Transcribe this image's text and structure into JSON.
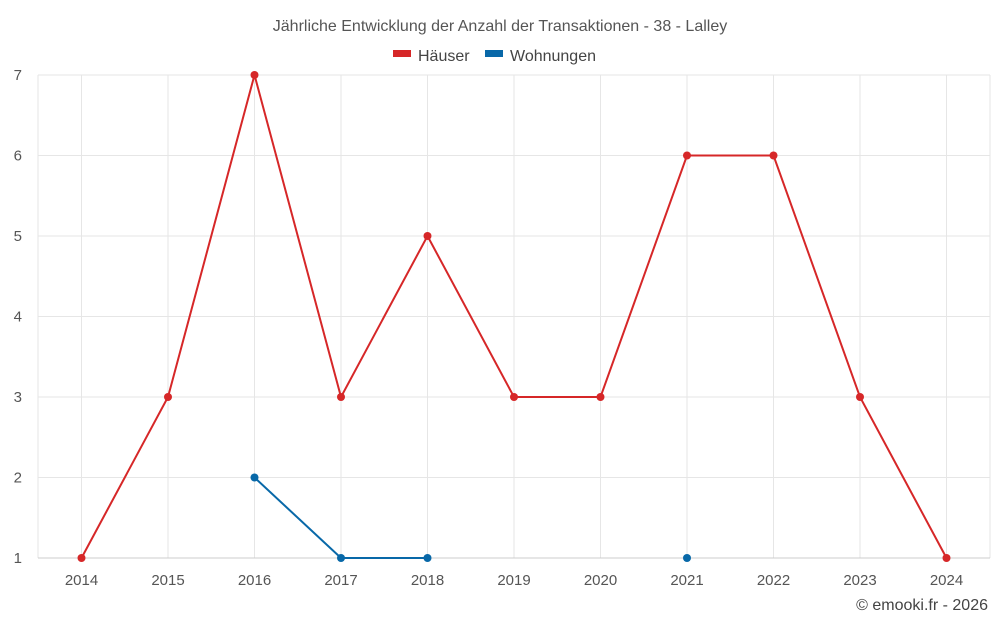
{
  "chart_data": {
    "type": "line",
    "title": "Jährliche Entwicklung der Anzahl der Transaktionen - 38 - Lalley",
    "x": [
      "2014",
      "2015",
      "2016",
      "2017",
      "2018",
      "2019",
      "2020",
      "2021",
      "2022",
      "2023",
      "2024"
    ],
    "ylim": [
      1,
      7
    ],
    "yticks": [
      "1",
      "2",
      "3",
      "4",
      "5",
      "6",
      "7"
    ],
    "grid": true,
    "legend_position": "top-center",
    "series": [
      {
        "name": "Häuser",
        "color": "#d62728",
        "values": [
          1,
          3,
          7,
          3,
          5,
          3,
          3,
          6,
          6,
          3,
          1
        ]
      },
      {
        "name": "Wohnungen",
        "color": "#0868a8",
        "values": [
          null,
          null,
          2,
          1,
          1,
          null,
          null,
          1,
          null,
          null,
          null
        ]
      }
    ]
  },
  "credit": "© emooki.fr - 2026"
}
